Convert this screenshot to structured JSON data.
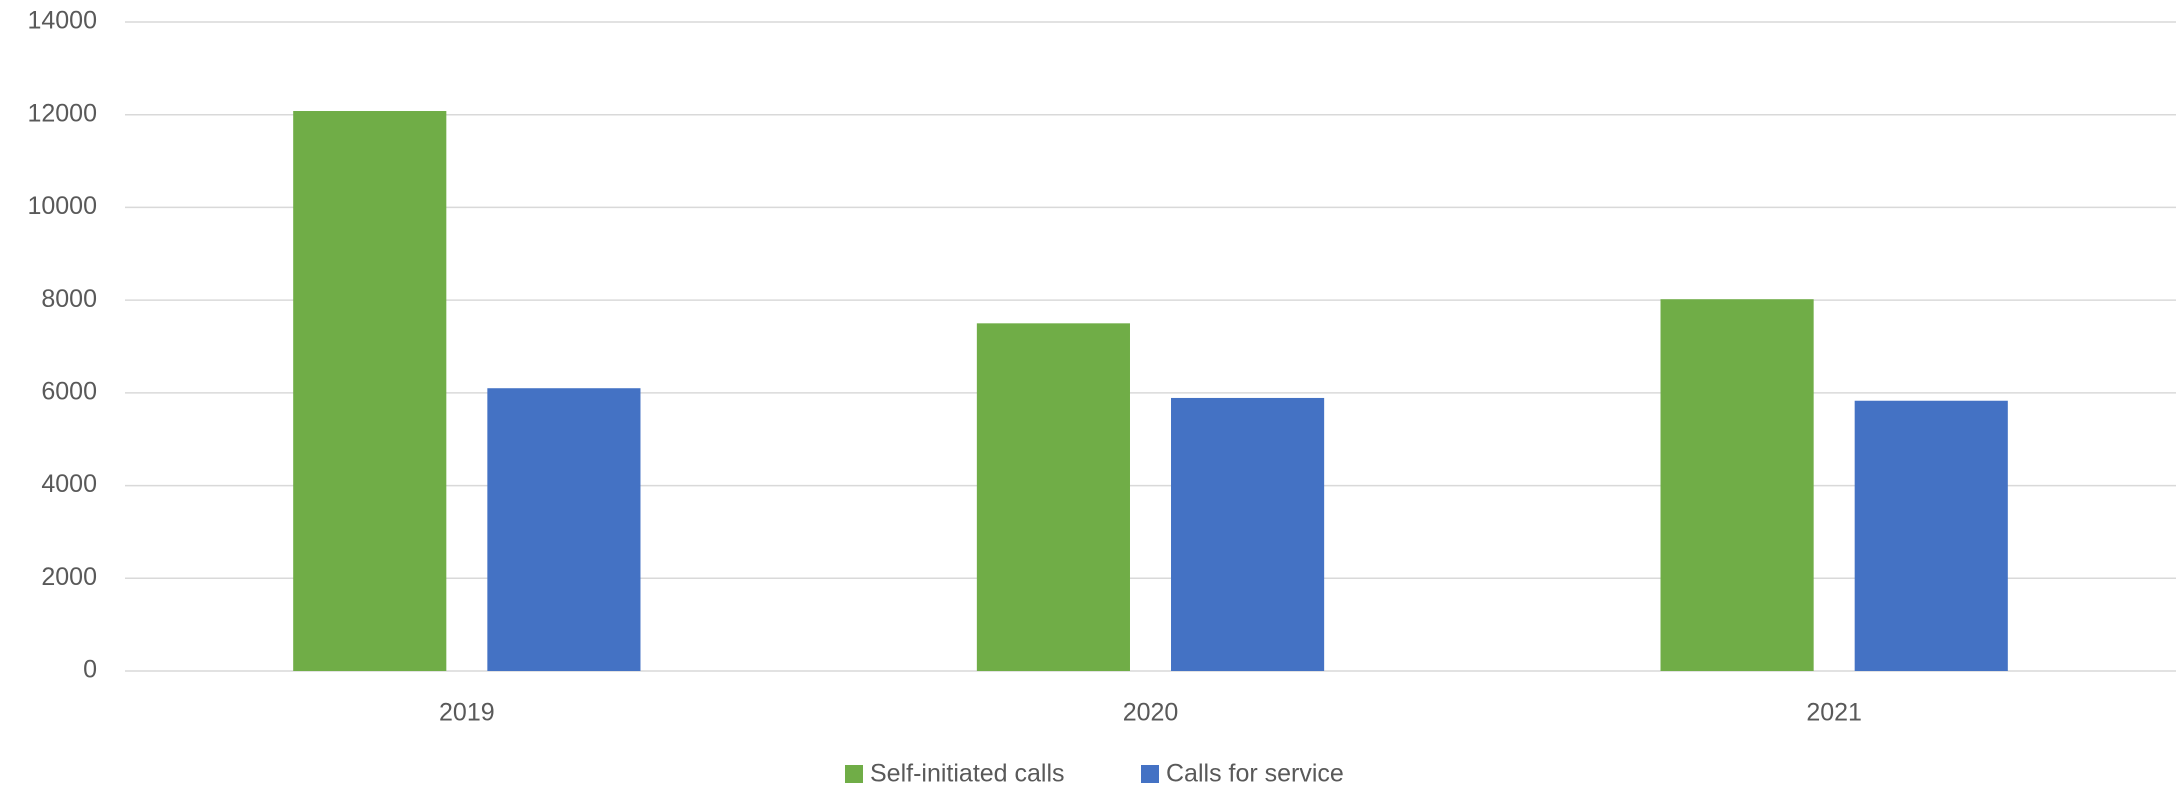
{
  "chart_data": {
    "type": "bar",
    "categories": [
      "2019",
      "2020",
      "2021"
    ],
    "series": [
      {
        "name": "Self-initiated calls",
        "color": "#70ad47",
        "values": [
          12080,
          7500,
          8020
        ]
      },
      {
        "name": "Calls for service",
        "color": "#4472c4",
        "values": [
          6100,
          5890,
          5830
        ]
      }
    ],
    "ylim": [
      0,
      14000
    ],
    "yticks": [
      0,
      2000,
      4000,
      6000,
      8000,
      10000,
      12000,
      14000
    ],
    "grid": true,
    "legend": "bottom"
  }
}
